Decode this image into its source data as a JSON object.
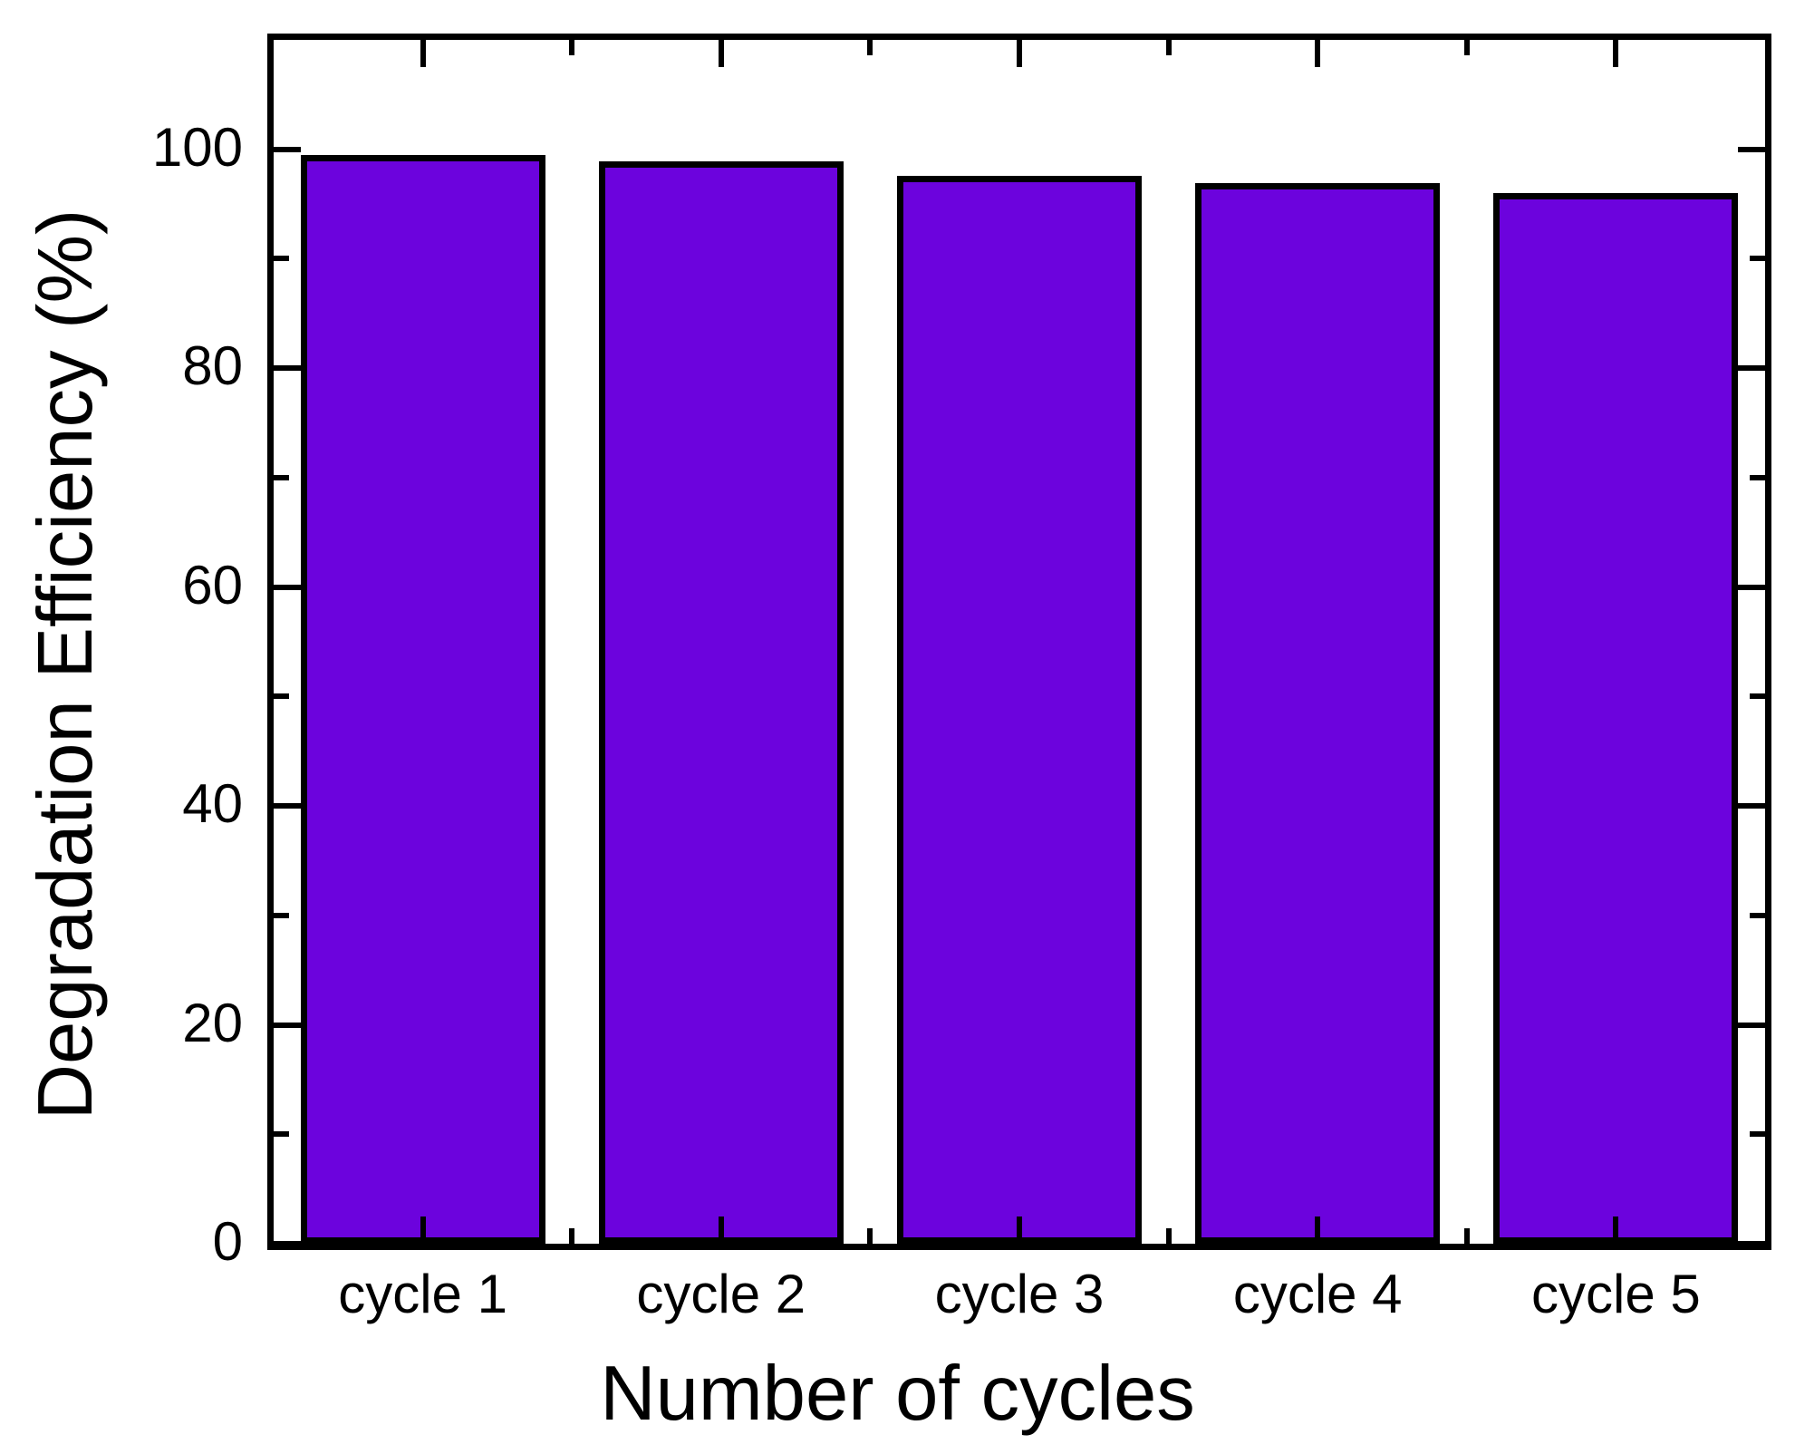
{
  "figure": {
    "background": "#ffffff",
    "frame_color": "#000000",
    "text_color": "#000000"
  },
  "chart_data": {
    "type": "bar",
    "title": "",
    "xlabel": "Number of cycles",
    "ylabel": "Degradation Efficiency (%)",
    "categories": [
      "cycle 1",
      "cycle 2",
      "cycle 3",
      "cycle 4",
      "cycle 5"
    ],
    "values": [
      99.5,
      98.9,
      97.6,
      96.9,
      96.0
    ],
    "ylim": [
      0,
      110
    ],
    "yticks_major": [
      0,
      20,
      40,
      60,
      80,
      100
    ],
    "yticks_minor": [
      10,
      30,
      50,
      70,
      90
    ],
    "bar_fill": "#6C03DD",
    "bar_edge": "#000000",
    "bar_width_fraction": 0.82,
    "tick_direction": "in",
    "ticks_mirrored": true,
    "grid": false,
    "legend": null
  }
}
